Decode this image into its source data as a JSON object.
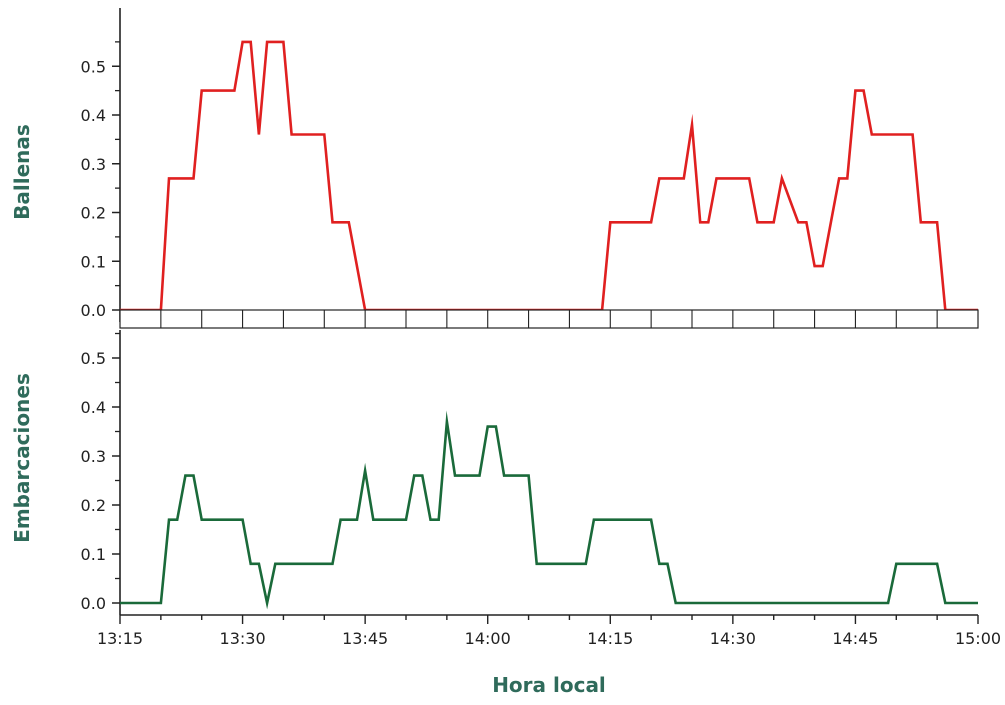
{
  "colors": {
    "axis": "#222222",
    "title": "#2f6b5b",
    "whales": "#e02020",
    "boats": "#1a6a3a"
  },
  "chart_data": [
    {
      "type": "line",
      "panel": "top",
      "ylabel": "Ballenas",
      "ylim": [
        -0.02,
        0.6
      ],
      "yticks": [
        "0.0",
        "0.1",
        "0.2",
        "0.3",
        "0.4",
        "0.5"
      ],
      "series": [
        {
          "color": "#e02020",
          "x": [
            "13:15",
            "13:20",
            "13:21",
            "13:24",
            "13:25",
            "13:29",
            "13:30",
            "13:31",
            "13:32",
            "13:33",
            "13:35",
            "13:36",
            "13:40",
            "13:41",
            "13:43",
            "13:45",
            "14:00",
            "14:14",
            "14:15",
            "14:20",
            "14:21",
            "14:24",
            "14:25",
            "14:26",
            "14:27",
            "14:28",
            "14:32",
            "14:33",
            "14:35",
            "14:36",
            "14:38",
            "14:39",
            "14:40",
            "14:41",
            "14:43",
            "14:44",
            "14:45",
            "14:46",
            "14:47",
            "14:52",
            "14:53",
            "14:55",
            "14:56",
            "15:00"
          ],
          "y": [
            0,
            0,
            0.27,
            0.27,
            0.45,
            0.45,
            0.55,
            0.55,
            0.36,
            0.55,
            0.55,
            0.36,
            0.36,
            0.18,
            0.18,
            0,
            0,
            0,
            0.18,
            0.18,
            0.27,
            0.27,
            0.38,
            0.18,
            0.18,
            0.27,
            0.27,
            0.18,
            0.18,
            0.27,
            0.18,
            0.18,
            0.09,
            0.09,
            0.27,
            0.27,
            0.45,
            0.45,
            0.36,
            0.36,
            0.18,
            0.18,
            0,
            0
          ]
        }
      ]
    },
    {
      "type": "line",
      "panel": "bottom",
      "ylabel": "Embarcaciones",
      "xlabel": "Hora local",
      "ylim": [
        -0.02,
        0.55
      ],
      "yticks": [
        "0.0",
        "0.1",
        "0.2",
        "0.3",
        "0.4",
        "0.5"
      ],
      "xticks": [
        "13:15",
        "13:30",
        "13:45",
        "14:00",
        "14:15",
        "14:30",
        "14:45",
        "15:00"
      ],
      "series": [
        {
          "color": "#1a6a3a",
          "x": [
            "13:15",
            "13:20",
            "13:21",
            "13:22",
            "13:23",
            "13:24",
            "13:25",
            "13:30",
            "13:31",
            "13:32",
            "13:33",
            "13:34",
            "13:35",
            "13:37",
            "13:41",
            "13:42",
            "13:44",
            "13:45",
            "13:46",
            "13:50",
            "13:51",
            "13:52",
            "13:53",
            "13:54",
            "13:55",
            "13:56",
            "13:59",
            "14:00",
            "14:01",
            "14:02",
            "14:05",
            "14:06",
            "14:10",
            "14:12",
            "14:13",
            "14:20",
            "14:21",
            "14:22",
            "14:23",
            "14:24",
            "14:25",
            "14:49",
            "14:50",
            "14:55",
            "14:56",
            "15:00"
          ],
          "y": [
            0,
            0,
            0.17,
            0.17,
            0.26,
            0.26,
            0.17,
            0.17,
            0.08,
            0.08,
            0,
            0.08,
            0.08,
            0.08,
            0.08,
            0.17,
            0.17,
            0.27,
            0.17,
            0.17,
            0.26,
            0.26,
            0.17,
            0.17,
            0.37,
            0.26,
            0.26,
            0.36,
            0.36,
            0.26,
            0.26,
            0.08,
            0.08,
            0.08,
            0.17,
            0.17,
            0.08,
            0.08,
            0,
            0,
            0,
            0,
            0.08,
            0.08,
            0,
            0
          ]
        }
      ]
    }
  ]
}
